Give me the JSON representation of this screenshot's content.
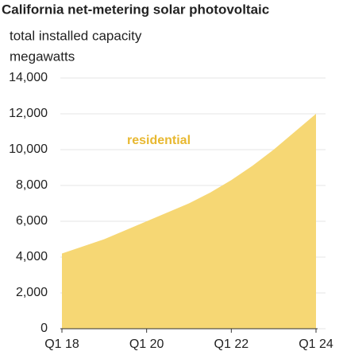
{
  "chart_data": {
    "type": "area",
    "title": "California net-metering solar photovoltaic",
    "subtitle": [
      "total installed capacity",
      "megawatts"
    ],
    "categories": [
      "Q1 18",
      null,
      null,
      null,
      null,
      null,
      null,
      null,
      "Q1 20",
      null,
      null,
      null,
      null,
      null,
      null,
      null,
      "Q1 22",
      null,
      null,
      null,
      null,
      null,
      null,
      null,
      "Q1 24"
    ],
    "series": [
      {
        "name": "residential",
        "color": "#f6d774",
        "values": [
          4200,
          4400,
          4600,
          4800,
          5000,
          5250,
          5500,
          5750,
          6000,
          6250,
          6500,
          6750,
          7000,
          7300,
          7600,
          7950,
          8300,
          8700,
          9100,
          9550,
          10000,
          10500,
          11000,
          11500,
          12000
        ]
      }
    ],
    "ylim": [
      0,
      14000
    ],
    "yticks": [
      0,
      {
        "value": 2000,
        "label": "2,000"
      },
      {
        "value": 4000,
        "label": "4,000"
      },
      {
        "value": 6000,
        "label": "6,000"
      },
      {
        "value": 8000,
        "label": "8,000"
      },
      {
        "value": 10000,
        "label": "10,000"
      },
      {
        "value": 12000,
        "label": "12,000"
      },
      {
        "value": 14000,
        "label": "14,000"
      }
    ],
    "grid": true
  }
}
